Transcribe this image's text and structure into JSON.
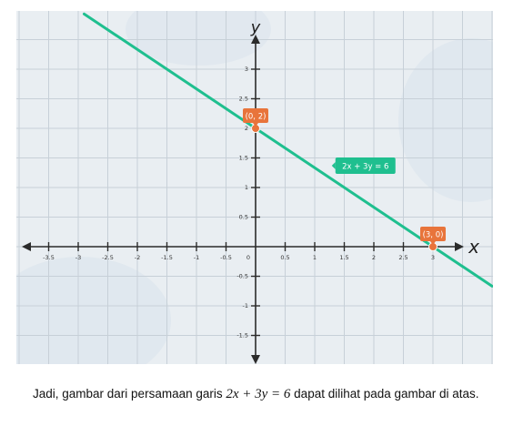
{
  "chart_data": {
    "type": "line",
    "title": "",
    "xlabel": "x",
    "ylabel": "y",
    "xlim": [
      -3.9,
      4.1
    ],
    "ylim": [
      -1.9,
      3.9
    ],
    "grid": true,
    "x_ticks": [
      -3.5,
      -3,
      -2.5,
      -2,
      -1.5,
      -1,
      -0.5,
      0.5,
      1,
      1.5,
      2,
      2.5,
      3
    ],
    "x_tick_labels": [
      "-3.5",
      "-3",
      "-2.5",
      "-2",
      "-1.5",
      "-1",
      "-0.5",
      "0.5",
      "1",
      "1.5",
      "2",
      "2.5",
      "3"
    ],
    "origin_label": "0",
    "y_ticks": [
      3,
      2.5,
      2,
      1.5,
      1,
      0.5,
      -0.5,
      -1,
      -1.5
    ],
    "y_tick_labels": [
      "3",
      "2.5",
      "2",
      "1.5",
      "1",
      "0.5",
      "-0.5",
      "-1",
      "-1.5"
    ],
    "series": [
      {
        "equation_label": "2x + 3y  = 6",
        "x": [
          -2.9,
          4.0
        ],
        "y": [
          3.933,
          -0.667
        ],
        "color": "#1fbf8f"
      }
    ],
    "points": [
      {
        "label": "(0, 2)",
        "x": 0,
        "y": 2,
        "color": "#e8743b"
      },
      {
        "label": "(3, 0)",
        "x": 3,
        "y": 0,
        "color": "#e8743b"
      }
    ],
    "colors": {
      "background": "#e9eef2",
      "grid": "#c7d0d8",
      "axis": "#2b2b2b",
      "line": "#1fbf8f",
      "point": "#e8743b"
    }
  },
  "caption": {
    "prefix": "Jadi, gambar dari persamaan garis ",
    "equation": "2x + 3y = 6",
    "suffix": " dapat dilihat pada gambar di atas."
  }
}
